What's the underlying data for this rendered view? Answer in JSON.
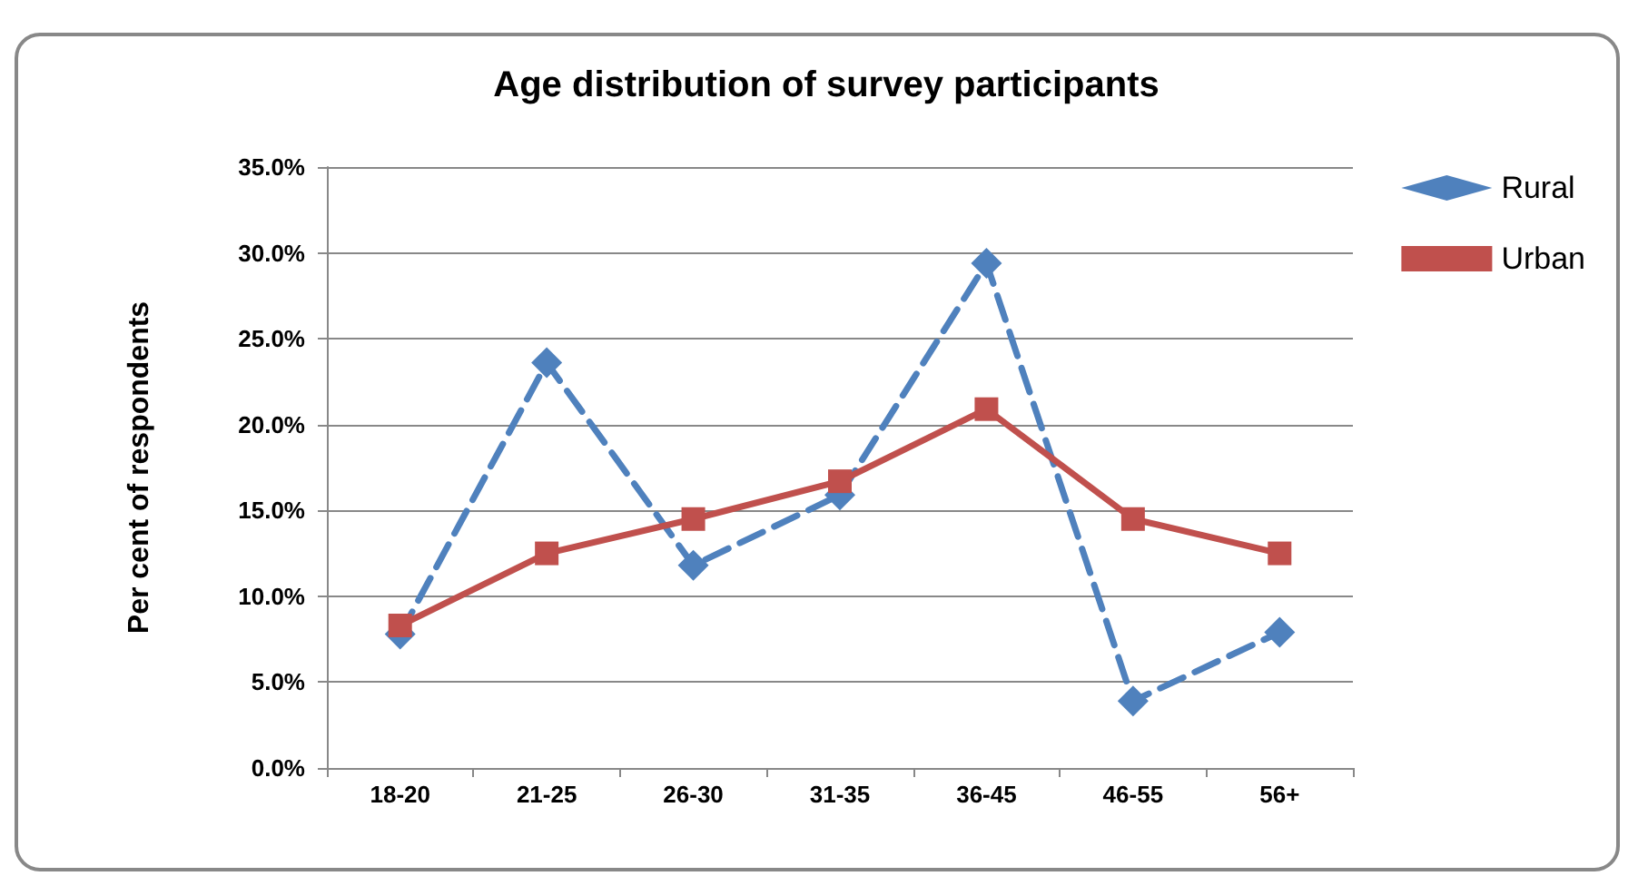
{
  "chart_data": {
    "type": "line",
    "title": "Age distribution of survey participants",
    "ylabel": "Per cent of respondents",
    "categories": [
      "18-20",
      "21-25",
      "26-30",
      "31-35",
      "36-45",
      "46-55",
      "56+"
    ],
    "series": [
      {
        "name": "Rural",
        "color": "#4f81bd",
        "marker": "diamond",
        "line_style": "dashed",
        "values": [
          7.8,
          23.6,
          11.8,
          15.9,
          29.4,
          3.9,
          7.9
        ]
      },
      {
        "name": "Urban",
        "color": "#c0504d",
        "marker": "square",
        "line_style": "solid",
        "values": [
          8.3,
          12.5,
          14.5,
          16.7,
          20.9,
          14.5,
          12.5
        ]
      }
    ],
    "ylim": [
      0,
      35
    ],
    "yticks": [
      {
        "value": 0,
        "label": "0.0%"
      },
      {
        "value": 5,
        "label": "5.0%"
      },
      {
        "value": 10,
        "label": "10.0%"
      },
      {
        "value": 15,
        "label": "15.0%"
      },
      {
        "value": 20,
        "label": "20.0%"
      },
      {
        "value": 25,
        "label": "25.0%"
      },
      {
        "value": 30,
        "label": "30.0%"
      },
      {
        "value": 35,
        "label": "35.0%"
      }
    ],
    "grid": "y",
    "legend": "top right"
  }
}
